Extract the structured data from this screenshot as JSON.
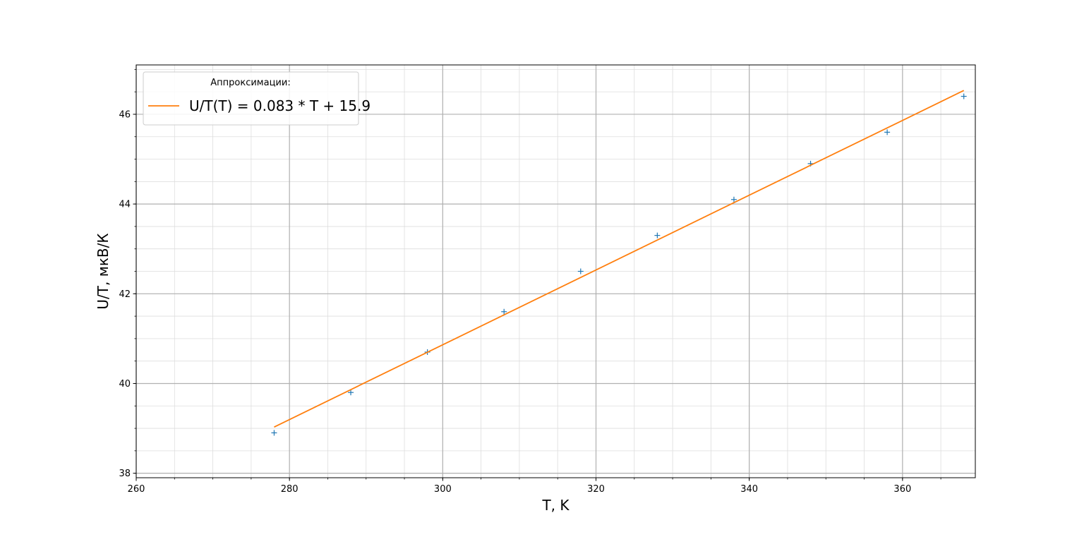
{
  "chart_data": {
    "type": "scatter",
    "title": "",
    "xlabel": "T, K",
    "ylabel": "U/T, мкВ/К",
    "xlim": [
      260,
      369.5
    ],
    "ylim": [
      37.9,
      47.1
    ],
    "x_major_ticks": [
      260,
      280,
      300,
      320,
      340,
      360
    ],
    "y_major_ticks": [
      38,
      40,
      42,
      44,
      46
    ],
    "x_minor_step": 5,
    "y_minor_step": 0.5,
    "grid": true,
    "legend_title": "Аппроксимации:",
    "legend_position": "top-left",
    "series": [
      {
        "kind": "scatter",
        "marker": "+",
        "color": "#1f77b4",
        "x": [
          278,
          288,
          298,
          308,
          318,
          328,
          338,
          348,
          358,
          368
        ],
        "y": [
          38.9,
          39.8,
          40.7,
          41.6,
          42.5,
          43.3,
          44.1,
          44.9,
          45.6,
          46.4
        ]
      },
      {
        "kind": "line",
        "name": "U/T(T) = 0.083 * T + 15.9",
        "color": "#ff7f0e",
        "x": [
          278,
          368
        ],
        "y": [
          39.03,
          46.53
        ]
      }
    ]
  }
}
